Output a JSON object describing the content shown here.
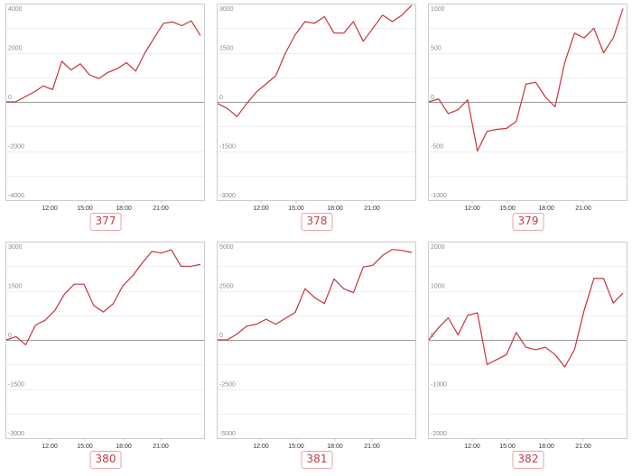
{
  "charts": [
    {
      "label": "377",
      "ylim": [
        -4000,
        4000
      ],
      "yticks": [
        4000,
        2000,
        0,
        -2000,
        -4000
      ],
      "ytick_labels": [
        "4000",
        "2000",
        "0",
        "-2000",
        "-4000"
      ],
      "xticks": [
        "12:00",
        "15:00",
        "18:00",
        "21:00"
      ],
      "values": [
        0,
        0,
        200,
        400,
        650,
        500,
        1650,
        1300,
        1550,
        1100,
        950,
        1200,
        1350,
        1600,
        1250,
        2000,
        2600,
        3200,
        3250,
        3100,
        3300,
        2700
      ]
    },
    {
      "label": "378",
      "ylim": [
        -3000,
        3000
      ],
      "yticks": [
        3000,
        1500,
        0,
        -1500,
        -3000
      ],
      "ytick_labels": [
        "3000",
        "1500",
        "0",
        "-1500",
        "-3000"
      ],
      "xticks": [
        "12:00",
        "15:00",
        "18:00",
        "21:00"
      ],
      "values": [
        -50,
        -200,
        -450,
        -50,
        300,
        550,
        800,
        1500,
        2050,
        2450,
        2400,
        2600,
        2100,
        2100,
        2450,
        1850,
        2250,
        2650,
        2450,
        2650,
        2950
      ]
    },
    {
      "label": "379",
      "ylim": [
        -1000,
        1000
      ],
      "yticks": [
        1000,
        500,
        0,
        -500,
        -1000
      ],
      "ytick_labels": [
        "1000",
        "500",
        "0",
        "-500",
        "-1000"
      ],
      "xticks": [
        "12:00",
        "15:00",
        "18:00",
        "21:00"
      ],
      "values": [
        0,
        30,
        -120,
        -80,
        20,
        -500,
        -300,
        -280,
        -270,
        -200,
        180,
        200,
        50,
        -50,
        400,
        700,
        650,
        750,
        500,
        650,
        950
      ]
    },
    {
      "label": "380",
      "ylim": [
        -3000,
        3000
      ],
      "yticks": [
        3000,
        1500,
        0,
        -1500,
        -3000
      ],
      "ytick_labels": [
        "3000",
        "1500",
        "0",
        "-1500",
        "-3000"
      ],
      "xticks": [
        "12:00",
        "15:00",
        "18:00",
        "21:00"
      ],
      "values": [
        0,
        100,
        -150,
        450,
        600,
        900,
        1400,
        1700,
        1700,
        1050,
        850,
        1100,
        1650,
        1950,
        2350,
        2700,
        2650,
        2750,
        2250,
        2250,
        2300
      ]
    },
    {
      "label": "381",
      "ylim": [
        -5000,
        5000
      ],
      "yticks": [
        5000,
        2500,
        0,
        -2500,
        -5000
      ],
      "ytick_labels": [
        "5000",
        "2500",
        "0",
        "-2500",
        "-5000"
      ],
      "xticks": [
        "12:00",
        "15:00",
        "18:00",
        "21:00"
      ],
      "values": [
        0,
        0,
        300,
        700,
        800,
        1050,
        800,
        1100,
        1400,
        2600,
        2150,
        1850,
        3100,
        2600,
        2400,
        3700,
        3800,
        4300,
        4600,
        4550,
        4450
      ]
    },
    {
      "label": "382",
      "ylim": [
        -2000,
        2000
      ],
      "yticks": [
        2000,
        1000,
        0,
        -1000,
        -2000
      ],
      "ytick_labels": [
        "2000",
        "1000",
        "0",
        "-1000",
        "-2000"
      ],
      "xticks": [
        "12:00",
        "15:00",
        "18:00",
        "21:00"
      ],
      "values": [
        0,
        250,
        450,
        100,
        500,
        550,
        -500,
        -400,
        -300,
        150,
        -150,
        -200,
        -150,
        -300,
        -550,
        -200,
        600,
        1250,
        1250,
        750,
        950
      ]
    }
  ],
  "colors": {
    "line": "#c7323d",
    "axis": "#999999",
    "grid": "#eeeeee",
    "frame": "#cccccc",
    "label_border": "#e8a3a8",
    "label_text": "#c53a47"
  }
}
